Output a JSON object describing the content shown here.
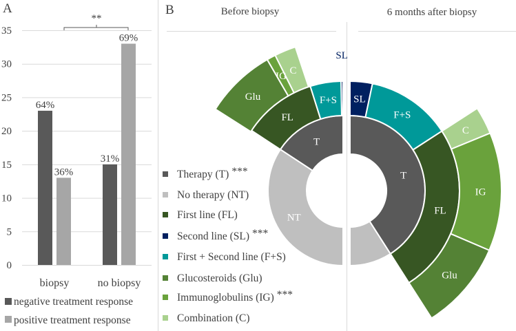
{
  "panel_a_label": "A",
  "panel_b_label": "B",
  "colors": {
    "negative": "#595959",
    "positive": "#a6a6a6",
    "T": "#595959",
    "NT": "#bfbfbf",
    "FL": "#375623",
    "SL": "#002060",
    "F+S": "#009999",
    "Glu": "#548235",
    "IG": "#6aa23c",
    "C": "#a9d18e",
    "grid": "#d9d9d9"
  },
  "chart_data": [
    {
      "type": "bar",
      "title": "",
      "xlabel": "",
      "ylabel": "",
      "ylim": [
        0,
        35
      ],
      "yticks": [
        "0",
        "5",
        "10",
        "15",
        "20",
        "25",
        "30",
        "35"
      ],
      "grid": true,
      "legend_placement": "bottom",
      "categories": [
        "biopsy",
        "no biopsy"
      ],
      "series": [
        {
          "name": "negative treatment response",
          "values": [
            23,
            15
          ],
          "labels": [
            "64%",
            "31%"
          ]
        },
        {
          "name": "positive treatment response",
          "values": [
            13,
            33
          ],
          "labels": [
            "36%",
            "69%"
          ]
        }
      ],
      "annotation": "**"
    },
    {
      "type": "sunburst",
      "title": "Before biopsy",
      "unit": "percent of half-circle",
      "rings": [
        [
          {
            "key": "T",
            "label": "T",
            "value": 31.5
          },
          {
            "key": "NT",
            "label": "NT",
            "value": 68.5
          }
        ],
        [
          {
            "key": "SL",
            "label": "SL",
            "value": 0.6,
            "outside": true
          },
          {
            "key": "F+S",
            "label": "F+S",
            "value": 9.1
          },
          {
            "key": "FL",
            "label": "FL",
            "value": 21.8
          }
        ],
        [
          {
            "key": "C",
            "label": "C",
            "value": 4.6,
            "offset": 10.2
          },
          {
            "key": "IG",
            "label": "IG",
            "value": 1.9
          },
          {
            "key": "Glu",
            "label": "Glu",
            "value": 15.2
          }
        ]
      ]
    },
    {
      "type": "sunburst",
      "title": "6 months after biopsy",
      "unit": "percent of half-circle",
      "rings": [
        [
          {
            "key": "T",
            "label": "T",
            "value": 81.9
          },
          {
            "key": "NT",
            "label": "",
            "value": 18.1
          }
        ],
        [
          {
            "key": "SL",
            "label": "SL",
            "value": 6.6
          },
          {
            "key": "F+S",
            "label": "F+S",
            "value": 25.1
          },
          {
            "key": "FL",
            "label": "FL",
            "value": 50.2
          }
        ],
        [
          {
            "key": "C",
            "label": "C",
            "value": 5.9,
            "offset": 31.7
          },
          {
            "key": "IG",
            "label": "IG",
            "value": 25.3
          },
          {
            "key": "Glu",
            "label": "Glu",
            "value": 19.0
          }
        ]
      ]
    }
  ],
  "legend_b": [
    {
      "key": "T",
      "label": "Therapy (T)",
      "sig": "***"
    },
    {
      "key": "NT",
      "label": "No therapy (NT)",
      "sig": ""
    },
    {
      "key": "FL",
      "label": "First line (FL)",
      "sig": ""
    },
    {
      "key": "SL",
      "label": "Second line (SL)",
      "sig": "***"
    },
    {
      "key": "F+S",
      "label": "First + Second line (F+S)",
      "sig": ""
    },
    {
      "key": "Glu",
      "label": "Glucosteroids (Glu)",
      "sig": ""
    },
    {
      "key": "IG",
      "label": "Immunoglobulins (IG)",
      "sig": "***"
    },
    {
      "key": "C",
      "label": "Combination (C)",
      "sig": ""
    }
  ]
}
